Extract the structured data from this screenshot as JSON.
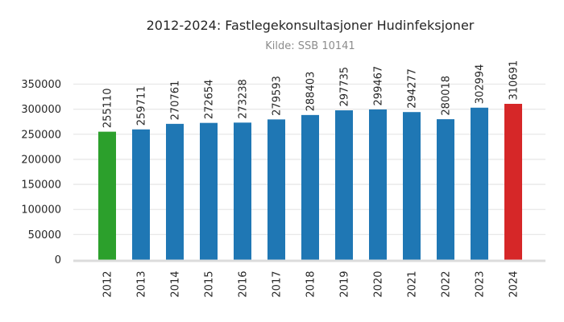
{
  "chart_data": {
    "type": "bar",
    "title": "2012-2024: Fastlegekonsultasjoner Hudinfeksjoner",
    "subtitle": "Kilde: SSB 10141",
    "categories": [
      "2012",
      "2013",
      "2014",
      "2015",
      "2016",
      "2017",
      "2018",
      "2019",
      "2020",
      "2021",
      "2022",
      "2023",
      "2024"
    ],
    "values": [
      255110,
      259711,
      270761,
      272654,
      273238,
      279593,
      288403,
      297735,
      299467,
      294277,
      280018,
      302994,
      310691
    ],
    "bar_colors": [
      "#2ca02c",
      "#1f77b4",
      "#1f77b4",
      "#1f77b4",
      "#1f77b4",
      "#1f77b4",
      "#1f77b4",
      "#1f77b4",
      "#1f77b4",
      "#1f77b4",
      "#1f77b4",
      "#1f77b4",
      "#d62728"
    ],
    "value_labels": [
      "255110",
      "259711",
      "270761",
      "272654",
      "273238",
      "279593",
      "288403",
      "297735",
      "299467",
      "294277",
      "280018",
      "302994",
      "310691"
    ],
    "xlabel": "",
    "ylabel": "",
    "ylim": [
      0,
      350000
    ],
    "ytick_step": 50000,
    "ytick_labels": [
      "0",
      "50000",
      "100000",
      "150000",
      "200000",
      "250000",
      "300000",
      "350000"
    ],
    "grid": true,
    "legend": false,
    "xtick_rotation": 90,
    "value_label_rotation": 90,
    "colors": {
      "text": "#262626",
      "tick_text": "#262626",
      "subtitle_text": "#8c8c8c",
      "gridline": "#e8e8e8",
      "axis_line": "#dcdcdc",
      "background": "#ffffff"
    }
  }
}
